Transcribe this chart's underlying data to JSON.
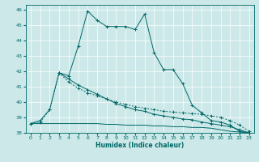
{
  "xlabel": "Humidex (Indice chaleur)",
  "xlim": [
    -0.5,
    23.5
  ],
  "ylim": [
    38,
    46.3
  ],
  "yticks": [
    38,
    39,
    40,
    41,
    42,
    43,
    44,
    45,
    46
  ],
  "xticks": [
    0,
    1,
    2,
    3,
    4,
    5,
    6,
    7,
    8,
    9,
    10,
    11,
    12,
    13,
    14,
    15,
    16,
    17,
    18,
    19,
    20,
    21,
    22,
    23
  ],
  "bg_color": "#cce8e8",
  "line_color": "#006868",
  "s1_x": [
    0,
    1,
    2,
    3,
    4,
    5,
    6,
    7,
    8,
    9,
    10,
    11,
    12,
    13,
    14,
    15,
    16,
    17,
    18,
    19,
    20,
    21,
    22,
    23
  ],
  "s1_y": [
    38.6,
    38.8,
    39.5,
    41.9,
    41.7,
    43.6,
    45.9,
    45.3,
    44.9,
    44.9,
    44.9,
    44.7,
    45.7,
    43.2,
    42.1,
    42.1,
    41.2,
    39.8,
    39.3,
    38.8,
    38.7,
    38.5,
    38.1,
    38.0
  ],
  "s2_x": [
    0,
    1,
    2,
    3,
    4,
    5,
    6,
    7,
    8,
    9,
    10,
    11,
    12,
    13,
    14,
    15,
    16,
    17,
    18,
    19,
    20,
    21,
    22,
    23
  ],
  "s2_y": [
    38.6,
    38.7,
    39.5,
    41.9,
    41.3,
    40.9,
    40.6,
    40.4,
    40.2,
    40.0,
    39.85,
    39.7,
    39.6,
    39.5,
    39.4,
    39.35,
    39.3,
    39.25,
    39.2,
    39.1,
    39.0,
    38.8,
    38.5,
    38.1
  ],
  "s3_x": [
    0,
    1,
    2,
    3,
    4,
    5,
    6,
    7,
    8,
    9,
    10,
    11,
    12,
    13,
    14,
    15,
    16,
    17,
    18,
    19,
    20,
    21,
    22,
    23
  ],
  "s3_y": [
    38.6,
    38.6,
    38.6,
    38.6,
    38.6,
    38.6,
    38.6,
    38.6,
    38.55,
    38.55,
    38.5,
    38.5,
    38.5,
    38.45,
    38.45,
    38.4,
    38.4,
    38.35,
    38.35,
    38.3,
    38.2,
    38.1,
    38.05,
    38.0
  ],
  "s4_x": [
    3,
    4,
    5,
    6,
    7,
    8,
    9,
    10,
    11,
    12,
    13,
    14,
    15,
    16,
    17,
    18,
    19,
    20,
    21,
    22,
    23
  ],
  "s4_y": [
    41.9,
    41.5,
    41.1,
    40.8,
    40.5,
    40.2,
    39.9,
    39.7,
    39.5,
    39.4,
    39.2,
    39.1,
    39.0,
    38.9,
    38.85,
    38.7,
    38.6,
    38.5,
    38.4,
    38.2,
    38.0
  ]
}
